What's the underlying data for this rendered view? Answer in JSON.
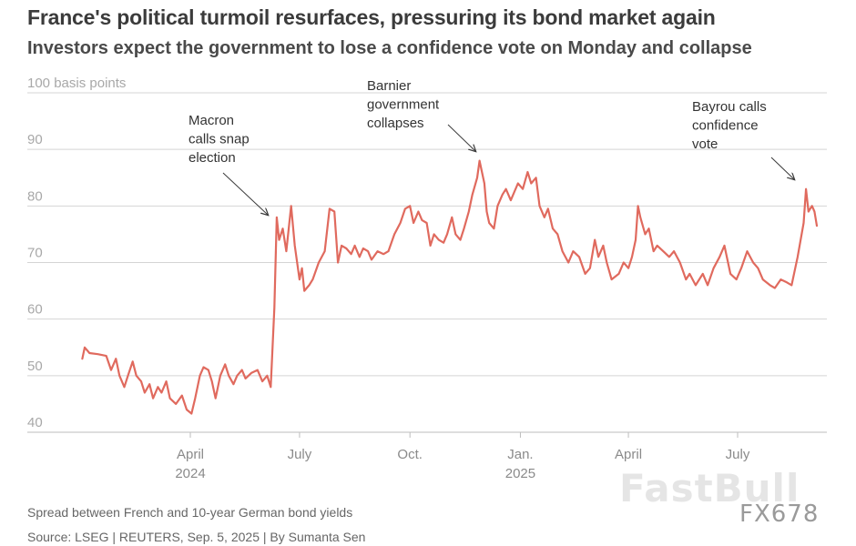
{
  "title": "France's political turmoil resurfaces, pressuring its bond market again",
  "subtitle": "Investors expect the government to lose a confidence vote on Monday and collapse",
  "footnote": "Spread between French and 10-year German bond yields",
  "source": "Source: LSEG | REUTERS, Sep. 5, 2025 | By Sumanta Sen",
  "watermark": {
    "brand": "FastBull",
    "code": "FX678"
  },
  "colors": {
    "line": "#e06a5e",
    "grid": "#d4d4d4",
    "axis_text": "#8a8a8a",
    "annotation": "#3a3a3a"
  },
  "chart_data": {
    "type": "line",
    "ylabel": "",
    "y_unit_label": "100 basis points",
    "ylim": [
      38,
      100
    ],
    "yticks": [
      40,
      50,
      60,
      70,
      80,
      90,
      100
    ],
    "x_range": [
      "2024-01-01",
      "2025-09-05"
    ],
    "xticks": [
      {
        "date": "2024-04-01",
        "label": "April",
        "year": "2024"
      },
      {
        "date": "2024-07-01",
        "label": "July",
        "year": ""
      },
      {
        "date": "2024-10-01",
        "label": "Oct.",
        "year": ""
      },
      {
        "date": "2025-01-01",
        "label": "Jan.",
        "year": "2025"
      },
      {
        "date": "2025-04-01",
        "label": "April",
        "year": ""
      },
      {
        "date": "2025-07-01",
        "label": "July",
        "year": ""
      }
    ],
    "grid": true,
    "series": [
      {
        "points": [
          [
            "2024-01-02",
            53
          ],
          [
            "2024-01-04",
            55
          ],
          [
            "2024-01-08",
            54
          ],
          [
            "2024-01-15",
            53.8
          ],
          [
            "2024-01-22",
            53.5
          ],
          [
            "2024-01-26",
            51
          ],
          [
            "2024-01-30",
            53
          ],
          [
            "2024-02-02",
            50
          ],
          [
            "2024-02-06",
            48
          ],
          [
            "2024-02-09",
            50
          ],
          [
            "2024-02-13",
            52.5
          ],
          [
            "2024-02-16",
            50
          ],
          [
            "2024-02-20",
            49
          ],
          [
            "2024-02-23",
            47
          ],
          [
            "2024-02-27",
            48.5
          ],
          [
            "2024-03-01",
            46
          ],
          [
            "2024-03-05",
            48
          ],
          [
            "2024-03-08",
            47
          ],
          [
            "2024-03-12",
            49
          ],
          [
            "2024-03-15",
            46
          ],
          [
            "2024-03-20",
            45
          ],
          [
            "2024-03-25",
            46.5
          ],
          [
            "2024-03-29",
            44
          ],
          [
            "2024-04-02",
            43.3
          ],
          [
            "2024-04-05",
            46
          ],
          [
            "2024-04-09",
            50
          ],
          [
            "2024-04-12",
            51.5
          ],
          [
            "2024-04-16",
            51
          ],
          [
            "2024-04-19",
            49
          ],
          [
            "2024-04-22",
            46
          ],
          [
            "2024-04-26",
            50
          ],
          [
            "2024-04-30",
            52
          ],
          [
            "2024-05-03",
            50
          ],
          [
            "2024-05-07",
            48.5
          ],
          [
            "2024-05-10",
            50
          ],
          [
            "2024-05-14",
            51
          ],
          [
            "2024-05-17",
            49.5
          ],
          [
            "2024-05-22",
            50.5
          ],
          [
            "2024-05-27",
            51
          ],
          [
            "2024-05-31",
            49
          ],
          [
            "2024-06-04",
            50
          ],
          [
            "2024-06-07",
            48
          ],
          [
            "2024-06-10",
            62
          ],
          [
            "2024-06-12",
            78
          ],
          [
            "2024-06-14",
            74
          ],
          [
            "2024-06-17",
            76
          ],
          [
            "2024-06-20",
            72
          ],
          [
            "2024-06-24",
            80
          ],
          [
            "2024-06-27",
            73
          ],
          [
            "2024-07-01",
            67
          ],
          [
            "2024-07-03",
            69
          ],
          [
            "2024-07-05",
            65
          ],
          [
            "2024-07-09",
            66
          ],
          [
            "2024-07-12",
            67
          ],
          [
            "2024-07-17",
            70
          ],
          [
            "2024-07-22",
            72
          ],
          [
            "2024-07-26",
            79.5
          ],
          [
            "2024-07-30",
            79
          ],
          [
            "2024-08-02",
            70
          ],
          [
            "2024-08-05",
            73
          ],
          [
            "2024-08-09",
            72.5
          ],
          [
            "2024-08-13",
            71.5
          ],
          [
            "2024-08-16",
            73
          ],
          [
            "2024-08-20",
            71
          ],
          [
            "2024-08-23",
            72.5
          ],
          [
            "2024-08-27",
            72
          ],
          [
            "2024-08-30",
            70.5
          ],
          [
            "2024-09-04",
            72
          ],
          [
            "2024-09-09",
            71.5
          ],
          [
            "2024-09-13",
            72
          ],
          [
            "2024-09-18",
            75
          ],
          [
            "2024-09-23",
            77
          ],
          [
            "2024-09-27",
            79.5
          ],
          [
            "2024-10-01",
            80
          ],
          [
            "2024-10-04",
            77
          ],
          [
            "2024-10-08",
            79
          ],
          [
            "2024-10-11",
            77.5
          ],
          [
            "2024-10-15",
            77
          ],
          [
            "2024-10-18",
            73
          ],
          [
            "2024-10-21",
            75
          ],
          [
            "2024-10-25",
            74
          ],
          [
            "2024-10-29",
            73.5
          ],
          [
            "2024-11-01",
            75
          ],
          [
            "2024-11-05",
            78
          ],
          [
            "2024-11-08",
            75
          ],
          [
            "2024-11-12",
            74
          ],
          [
            "2024-11-15",
            76
          ],
          [
            "2024-11-19",
            79
          ],
          [
            "2024-11-22",
            82
          ],
          [
            "2024-11-26",
            85
          ],
          [
            "2024-11-28",
            88
          ],
          [
            "2024-12-02",
            84
          ],
          [
            "2024-12-04",
            79
          ],
          [
            "2024-12-06",
            77
          ],
          [
            "2024-12-10",
            76
          ],
          [
            "2024-12-13",
            80
          ],
          [
            "2024-12-17",
            82
          ],
          [
            "2024-12-20",
            83
          ],
          [
            "2024-12-24",
            81
          ],
          [
            "2024-12-30",
            84
          ],
          [
            "2025-01-03",
            83
          ],
          [
            "2025-01-07",
            86
          ],
          [
            "2025-01-10",
            84
          ],
          [
            "2025-01-14",
            85
          ],
          [
            "2025-01-17",
            80
          ],
          [
            "2025-01-21",
            78
          ],
          [
            "2025-01-24",
            79.5
          ],
          [
            "2025-01-28",
            76
          ],
          [
            "2025-02-01",
            75
          ],
          [
            "2025-02-05",
            72
          ],
          [
            "2025-02-10",
            70
          ],
          [
            "2025-02-14",
            72
          ],
          [
            "2025-02-19",
            71
          ],
          [
            "2025-02-24",
            68
          ],
          [
            "2025-02-28",
            69
          ],
          [
            "2025-03-04",
            74
          ],
          [
            "2025-03-07",
            71
          ],
          [
            "2025-03-11",
            73
          ],
          [
            "2025-03-14",
            70
          ],
          [
            "2025-03-18",
            67
          ],
          [
            "2025-03-24",
            68
          ],
          [
            "2025-03-28",
            70
          ],
          [
            "2025-04-01",
            69
          ],
          [
            "2025-04-04",
            71
          ],
          [
            "2025-04-07",
            74
          ],
          [
            "2025-04-09",
            80
          ],
          [
            "2025-04-11",
            78
          ],
          [
            "2025-04-15",
            75
          ],
          [
            "2025-04-18",
            76
          ],
          [
            "2025-04-22",
            72
          ],
          [
            "2025-04-25",
            73
          ],
          [
            "2025-04-30",
            72
          ],
          [
            "2025-05-05",
            71
          ],
          [
            "2025-05-09",
            72
          ],
          [
            "2025-05-14",
            70
          ],
          [
            "2025-05-19",
            67
          ],
          [
            "2025-05-22",
            68
          ],
          [
            "2025-05-27",
            66
          ],
          [
            "2025-06-02",
            68
          ],
          [
            "2025-06-06",
            66
          ],
          [
            "2025-06-11",
            69
          ],
          [
            "2025-06-16",
            71
          ],
          [
            "2025-06-20",
            73
          ],
          [
            "2025-06-25",
            68
          ],
          [
            "2025-06-30",
            67
          ],
          [
            "2025-07-04",
            69
          ],
          [
            "2025-07-09",
            72
          ],
          [
            "2025-07-14",
            70
          ],
          [
            "2025-07-18",
            69
          ],
          [
            "2025-07-22",
            67
          ],
          [
            "2025-07-28",
            66
          ],
          [
            "2025-08-01",
            65.5
          ],
          [
            "2025-08-06",
            67
          ],
          [
            "2025-08-11",
            66.5
          ],
          [
            "2025-08-15",
            66
          ],
          [
            "2025-08-20",
            71
          ],
          [
            "2025-08-25",
            77
          ],
          [
            "2025-08-27",
            83
          ],
          [
            "2025-08-29",
            79
          ],
          [
            "2025-09-01",
            80
          ],
          [
            "2025-09-03",
            79
          ],
          [
            "2025-09-05",
            76.5
          ]
        ]
      }
    ],
    "annotations": [
      {
        "lines": [
          "Macron",
          "calls snap",
          "election"
        ],
        "date": "2024-06-10",
        "value": 78
      },
      {
        "lines": [
          "Barnier",
          "government",
          "collapses"
        ],
        "date": "2024-12-04",
        "value": 88
      },
      {
        "lines": [
          "Bayrou calls",
          "confidence",
          "vote"
        ],
        "date": "2025-08-26",
        "value": 83
      }
    ]
  }
}
